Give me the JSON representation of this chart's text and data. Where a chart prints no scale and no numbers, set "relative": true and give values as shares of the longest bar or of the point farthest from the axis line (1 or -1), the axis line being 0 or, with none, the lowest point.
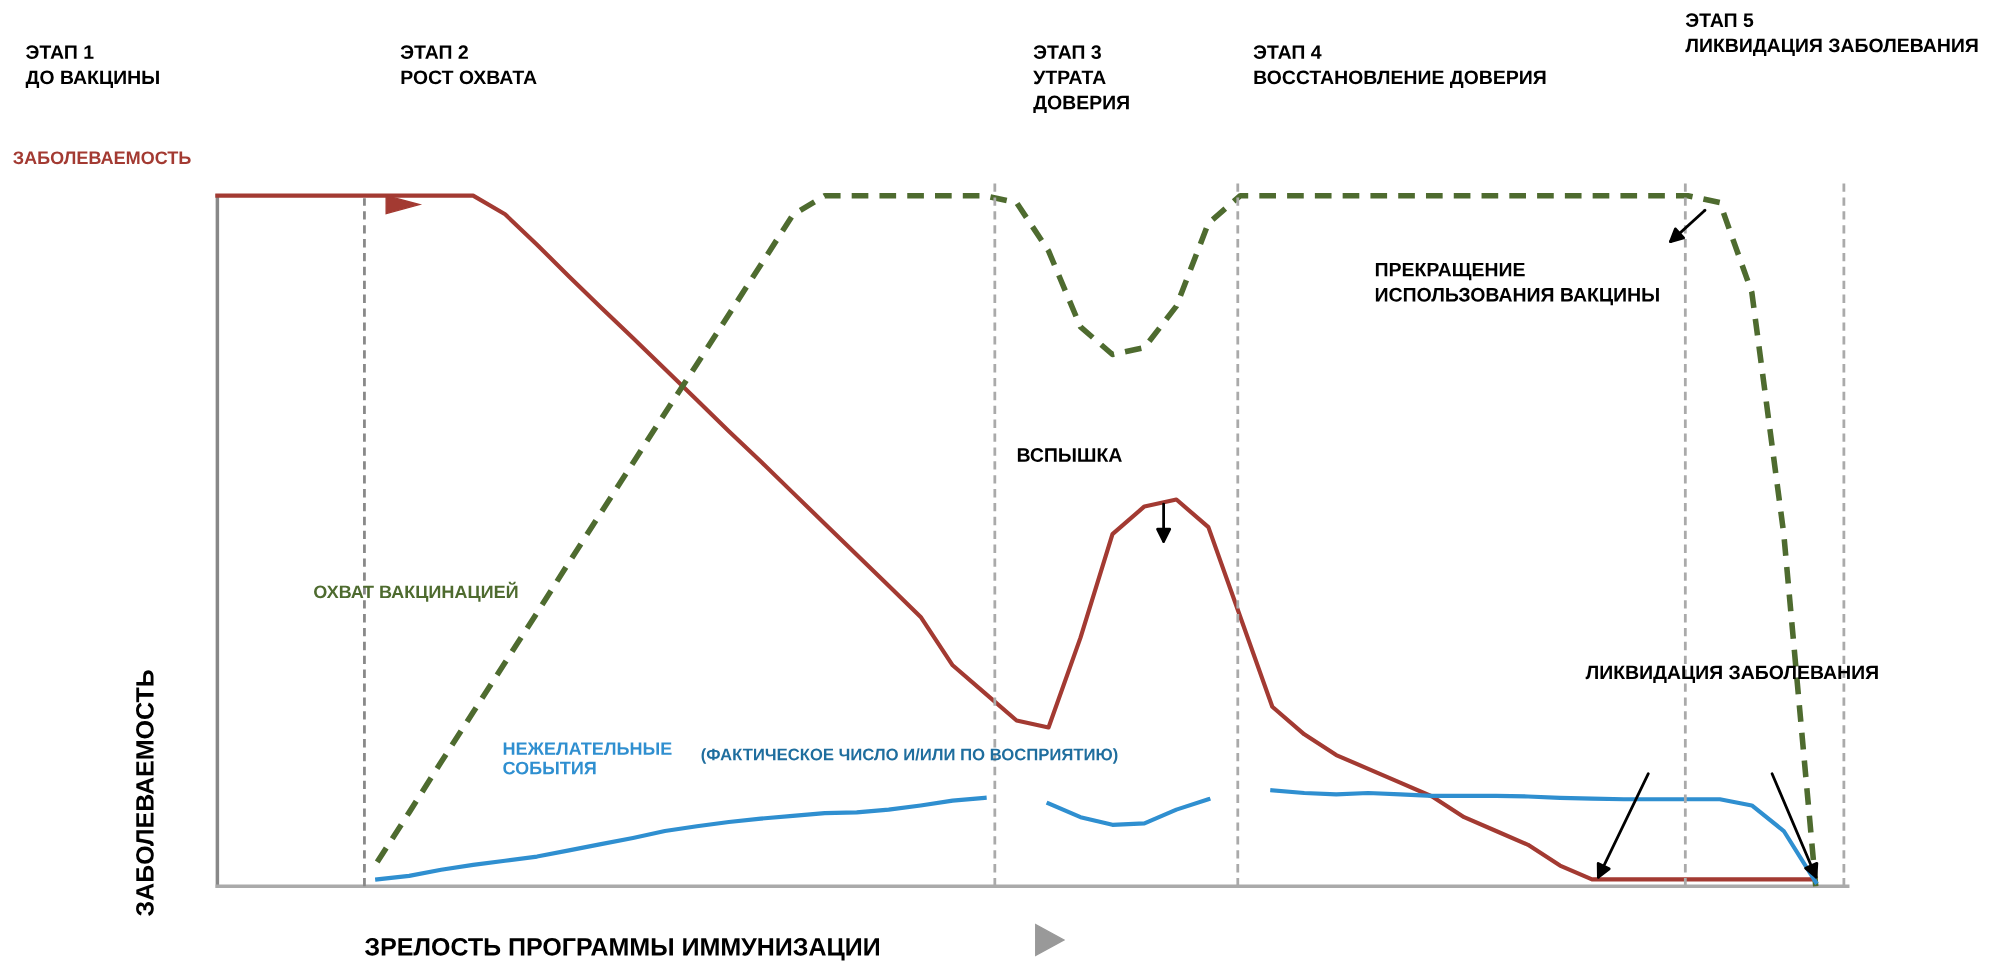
{
  "chart_data": {
    "type": "line",
    "relative": true,
    "xlabel": "ЗРЕЛОСТЬ ПРОГРАММЫ ИММУНИЗАЦИИ",
    "ylabel": "ЗАБОЛЕВАЕМОСТЬ",
    "categories": [
      null,
      null,
      null,
      null,
      null,
      null,
      null,
      null,
      null,
      null,
      null,
      null,
      null,
      null,
      null,
      null,
      null,
      null,
      null,
      null,
      null,
      null,
      null,
      null,
      null,
      null,
      null,
      null,
      null,
      null,
      null,
      null,
      null,
      null,
      null,
      null,
      null,
      null,
      null,
      null,
      null,
      null,
      null,
      null,
      null,
      null,
      null,
      null,
      null,
      null,
      null,
      null
    ],
    "series": [
      {
        "name": "ЗАБОЛЕВАЕМОСТЬ",
        "color": "#a33a32",
        "line_style": "solid",
        "values": [
          1,
          1,
          1,
          1,
          1,
          1,
          1,
          1,
          1,
          0.973,
          0.929,
          0.883,
          0.838,
          0.794,
          0.749,
          0.704,
          0.659,
          0.615,
          0.57,
          0.525,
          0.48,
          0.435,
          0.39,
          0.32,
          0.28,
          0.24,
          0.23,
          0.36,
          0.51,
          0.55,
          0.56,
          0.52,
          0.39,
          0.26,
          0.22,
          0.19,
          0.17,
          0.15,
          0.13,
          0.1,
          0.08,
          0.06,
          0.03,
          0.01,
          0.01,
          0.01,
          0.01,
          0.01,
          0.01,
          0.01,
          0.01,
          null
        ]
      },
      {
        "name": "ОХВАТ ВАКЦИНАЦИЕЙ",
        "color": "#4e6b2f",
        "line_style": "dashed",
        "values": [
          null,
          null,
          null,
          null,
          null,
          0.035,
          0.107,
          0.18,
          0.252,
          0.324,
          0.396,
          0.469,
          0.541,
          0.613,
          0.685,
          0.756,
          0.828,
          0.9,
          0.972,
          1,
          1,
          1,
          1,
          1,
          1,
          0.99,
          0.92,
          0.81,
          0.77,
          0.78,
          0.84,
          0.96,
          1,
          1,
          1,
          1,
          1,
          1,
          1,
          1,
          1,
          1,
          1,
          1,
          1,
          1,
          1,
          0.99,
          0.86,
          0.51,
          0,
          null
        ]
      },
      {
        "name": "НЕЖЕЛАТЕЛЬНЫЕ\nСОБЫТИЯ",
        "color": "#2f8fd0",
        "line_style": "solid",
        "values": [
          null,
          null,
          null,
          null,
          null,
          0.01,
          0.015,
          0.024,
          0.031,
          0.037,
          0.043,
          0.052,
          0.061,
          0.07,
          0.08,
          0.087,
          0.093,
          0.098,
          0.102,
          0.106,
          0.107,
          0.111,
          0.117,
          0.124,
          0.128,
          null,
          0.12,
          0.1,
          0.089,
          0.091,
          0.111,
          0.126,
          null,
          0.139,
          0.135,
          0.133,
          0.135,
          0.133,
          0.131,
          0.131,
          0.131,
          0.13,
          0.128,
          0.127,
          0.126,
          0.126,
          0.126,
          0.126,
          0.117,
          0.08,
          0.006,
          null
        ]
      }
    ],
    "annotations": [
      "ЭТАП 1\nДО ВАКЦИНЫ",
      "ЭТАП 2\nРОСТ ОХВАТА",
      "ЭТАП 3\nУТРАТА\nДОВЕРИЯ",
      "ЭТАП 4\nВОССТАНОВЛЕНИЕ ДОВЕРИЯ",
      "ЭТАП 5\nЛИКВИДАЦИЯ ЗАБОЛЕВАНИЯ",
      "ПРЕКРАЩЕНИЕ\nИСПОЛЬЗОВАНИЯ ВАКЦИНЫ",
      "ВСПЫШКА",
      "ЛИКВИДАЦИЯ ЗАБОЛЕВАНИЯ",
      "(ФАКТИЧЕСКОЕ ЧИСЛО И/ИЛИ ПО ВОСПРИЯТИЮ)"
    ],
    "grid": "x"
  }
}
